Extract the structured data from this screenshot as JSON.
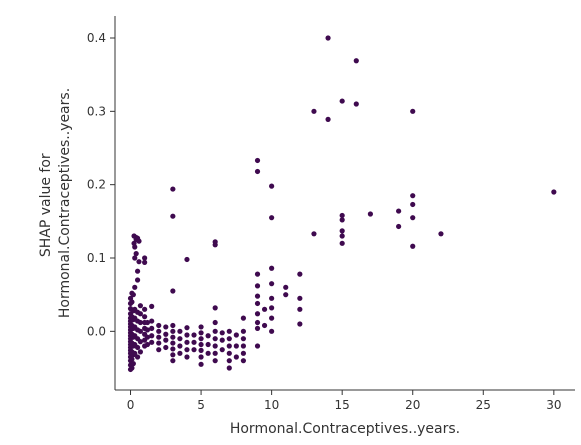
{
  "chart_data": {
    "type": "scatter",
    "title": "",
    "xlabel": "Hormonal.Contraceptives..years.",
    "ylabel_lines": [
      "SHAP value for",
      "Hormonal.Contraceptives..years."
    ],
    "xlim": [
      -1.1,
      31.5
    ],
    "ylim": [
      -0.08,
      0.43
    ],
    "xticks": [
      0,
      5,
      10,
      15,
      20,
      25,
      30
    ],
    "yticks": [
      0.0,
      0.1,
      0.2,
      0.3,
      0.4
    ],
    "ytick_labels": [
      "0.0",
      "0.1",
      "0.2",
      "0.3",
      "0.4"
    ],
    "grid": false,
    "legend": "none",
    "point_color": "#3f0a4f",
    "series": [
      {
        "points": [
          [
            0,
            -0.052
          ],
          [
            0,
            -0.046
          ],
          [
            0,
            -0.04
          ],
          [
            0,
            -0.035
          ],
          [
            0,
            -0.03
          ],
          [
            0,
            -0.026
          ],
          [
            0,
            -0.022
          ],
          [
            0,
            -0.018
          ],
          [
            0,
            -0.014
          ],
          [
            0,
            -0.01
          ],
          [
            0,
            -0.006
          ],
          [
            0,
            -0.002
          ],
          [
            0,
            0.002
          ],
          [
            0,
            0.006
          ],
          [
            0,
            0.01
          ],
          [
            0,
            0.014
          ],
          [
            0,
            0.018
          ],
          [
            0,
            0.024
          ],
          [
            0,
            0.031
          ],
          [
            0,
            0.038
          ],
          [
            0,
            0.045
          ],
          [
            0.1,
            -0.05
          ],
          [
            0.1,
            -0.038
          ],
          [
            0.1,
            -0.028
          ],
          [
            0.1,
            -0.016
          ],
          [
            0.1,
            -0.004
          ],
          [
            0.1,
            0.008
          ],
          [
            0.1,
            0.02
          ],
          [
            0.1,
            0.04
          ],
          [
            0.1,
            0.052
          ],
          [
            0.2,
            -0.044
          ],
          [
            0.2,
            -0.032
          ],
          [
            0.2,
            -0.02
          ],
          [
            0.2,
            -0.008
          ],
          [
            0.2,
            0.004
          ],
          [
            0.2,
            0.016
          ],
          [
            0.2,
            0.028
          ],
          [
            0.2,
            0.05
          ],
          [
            0.25,
            0.13
          ],
          [
            0.25,
            0.12
          ],
          [
            0.3,
            -0.03
          ],
          [
            0.3,
            -0.018
          ],
          [
            0.3,
            -0.006
          ],
          [
            0.3,
            0.006
          ],
          [
            0.3,
            0.018
          ],
          [
            0.3,
            0.03
          ],
          [
            0.3,
            0.06
          ],
          [
            0.3,
            0.1
          ],
          [
            0.3,
            0.115
          ],
          [
            0.4,
            0.128
          ],
          [
            0.4,
            0.125
          ],
          [
            0.4,
            0.106
          ],
          [
            0.5,
            -0.035
          ],
          [
            0.5,
            -0.022
          ],
          [
            0.5,
            -0.01
          ],
          [
            0.5,
            0.002
          ],
          [
            0.5,
            0.014
          ],
          [
            0.5,
            0.026
          ],
          [
            0.5,
            0.07
          ],
          [
            0.5,
            0.082
          ],
          [
            0.5,
            0.127
          ],
          [
            0.6,
            0.123
          ],
          [
            0.6,
            0.095
          ],
          [
            0.7,
            -0.028
          ],
          [
            0.7,
            -0.014
          ],
          [
            0.7,
            0.0
          ],
          [
            0.7,
            0.012
          ],
          [
            0.7,
            0.024
          ],
          [
            0.7,
            0.035
          ],
          [
            1,
            -0.02
          ],
          [
            1,
            -0.012
          ],
          [
            1,
            -0.004
          ],
          [
            1,
            0.004
          ],
          [
            1,
            0.012
          ],
          [
            1,
            0.02
          ],
          [
            1,
            0.03
          ],
          [
            1,
            0.1
          ],
          [
            1,
            0.094
          ],
          [
            1.2,
            -0.018
          ],
          [
            1.2,
            -0.008
          ],
          [
            1.2,
            0.002
          ],
          [
            1.2,
            0.012
          ],
          [
            1.5,
            -0.015
          ],
          [
            1.5,
            -0.006
          ],
          [
            1.5,
            0.004
          ],
          [
            1.5,
            0.014
          ],
          [
            1.5,
            0.034
          ],
          [
            2,
            -0.025
          ],
          [
            2,
            -0.016
          ],
          [
            2,
            -0.008
          ],
          [
            2,
            0.0
          ],
          [
            2,
            0.008
          ],
          [
            2.5,
            -0.022
          ],
          [
            2.5,
            -0.012
          ],
          [
            2.5,
            -0.004
          ],
          [
            2.5,
            0.006
          ],
          [
            3,
            -0.04
          ],
          [
            3,
            -0.032
          ],
          [
            3,
            -0.024
          ],
          [
            3,
            -0.016
          ],
          [
            3,
            -0.008
          ],
          [
            3,
            0.0
          ],
          [
            3,
            0.008
          ],
          [
            3,
            0.055
          ],
          [
            3,
            0.157
          ],
          [
            3,
            0.194
          ],
          [
            3.5,
            -0.03
          ],
          [
            3.5,
            -0.02
          ],
          [
            3.5,
            -0.01
          ],
          [
            3.5,
            0.0
          ],
          [
            4,
            -0.035
          ],
          [
            4,
            -0.025
          ],
          [
            4,
            -0.015
          ],
          [
            4,
            -0.005
          ],
          [
            4,
            0.005
          ],
          [
            4,
            0.098
          ],
          [
            4.5,
            -0.025
          ],
          [
            4.5,
            -0.015
          ],
          [
            4.5,
            -0.005
          ],
          [
            5,
            -0.045
          ],
          [
            5,
            -0.035
          ],
          [
            5,
            -0.026
          ],
          [
            5,
            -0.018
          ],
          [
            5,
            -0.01
          ],
          [
            5,
            -0.002
          ],
          [
            5,
            0.006
          ],
          [
            5.5,
            -0.03
          ],
          [
            5.5,
            -0.018
          ],
          [
            5.5,
            -0.006
          ],
          [
            6,
            -0.04
          ],
          [
            6,
            -0.03
          ],
          [
            6,
            -0.02
          ],
          [
            6,
            -0.01
          ],
          [
            6,
            0.0
          ],
          [
            6,
            0.012
          ],
          [
            6,
            0.032
          ],
          [
            6,
            0.118
          ],
          [
            6,
            0.122
          ],
          [
            6.5,
            -0.025
          ],
          [
            6.5,
            -0.012
          ],
          [
            6.5,
            -0.002
          ],
          [
            7,
            -0.05
          ],
          [
            7,
            -0.04
          ],
          [
            7,
            -0.03
          ],
          [
            7,
            -0.02
          ],
          [
            7,
            -0.01
          ],
          [
            7,
            0.0
          ],
          [
            7.5,
            -0.035
          ],
          [
            7.5,
            -0.02
          ],
          [
            7.5,
            -0.005
          ],
          [
            8,
            -0.04
          ],
          [
            8,
            -0.03
          ],
          [
            8,
            -0.02
          ],
          [
            8,
            -0.01
          ],
          [
            8,
            0.0
          ],
          [
            8,
            0.018
          ],
          [
            9,
            -0.02
          ],
          [
            9,
            0.004
          ],
          [
            9,
            0.012
          ],
          [
            9,
            0.024
          ],
          [
            9,
            0.038
          ],
          [
            9,
            0.048
          ],
          [
            9,
            0.062
          ],
          [
            9,
            0.078
          ],
          [
            9,
            0.218
          ],
          [
            9,
            0.233
          ],
          [
            9.5,
            0.008
          ],
          [
            9.5,
            0.03
          ],
          [
            10,
            0.0
          ],
          [
            10,
            0.018
          ],
          [
            10,
            0.032
          ],
          [
            10,
            0.045
          ],
          [
            10,
            0.065
          ],
          [
            10,
            0.086
          ],
          [
            10,
            0.155
          ],
          [
            10,
            0.198
          ],
          [
            11,
            0.05
          ],
          [
            11,
            0.06
          ],
          [
            12,
            0.01
          ],
          [
            12,
            0.03
          ],
          [
            12,
            0.045
          ],
          [
            12,
            0.078
          ],
          [
            13,
            0.133
          ],
          [
            13,
            0.3
          ],
          [
            14,
            0.289
          ],
          [
            14,
            0.4
          ],
          [
            15,
            0.12
          ],
          [
            15,
            0.13
          ],
          [
            15,
            0.137
          ],
          [
            15,
            0.152
          ],
          [
            15,
            0.158
          ],
          [
            15,
            0.314
          ],
          [
            16,
            0.31
          ],
          [
            16,
            0.369
          ],
          [
            17,
            0.16
          ],
          [
            19,
            0.143
          ],
          [
            19,
            0.164
          ],
          [
            20,
            0.116
          ],
          [
            20,
            0.155
          ],
          [
            20,
            0.173
          ],
          [
            20,
            0.185
          ],
          [
            20,
            0.3
          ],
          [
            22,
            0.133
          ],
          [
            30,
            0.19
          ]
        ]
      }
    ]
  }
}
